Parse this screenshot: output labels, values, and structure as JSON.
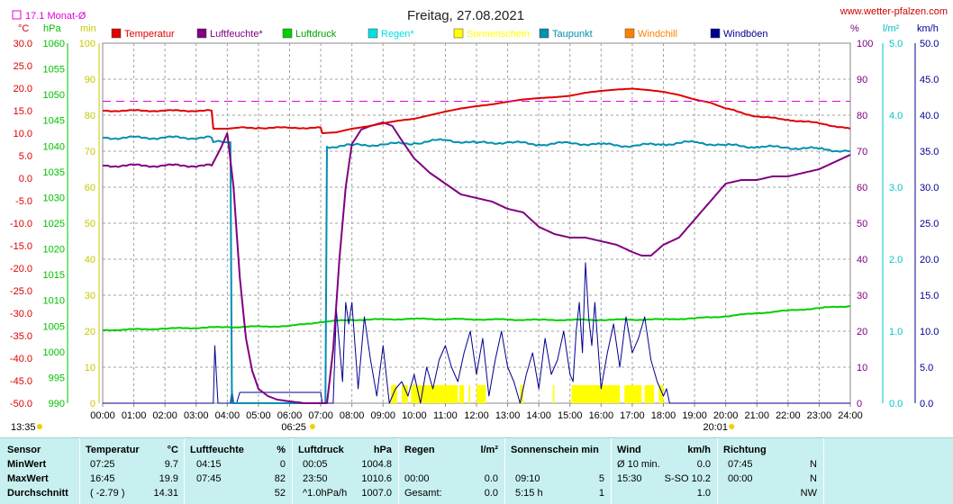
{
  "title": "Freitag, 27.08.2021",
  "site": "www.wetter-pfalzen.com",
  "monthly_avg": "17.1 Monat-Ø",
  "colors": {
    "temperatur": "#e00000",
    "luftfeuchte": "#800080",
    "luftdruck": "#00d000",
    "regen": "#00e0e0",
    "sonnenschein": "#ffff00",
    "taupunkt": "#0090b0",
    "windchill": "#ff8000",
    "windboeen": "#000090",
    "avgline": "#e000e0"
  },
  "legend": [
    "Temperatur",
    "Luftfeuchte*",
    "Luftdruck",
    "Regen*",
    "Sonnenschein",
    "Taupunkt",
    "Windchill",
    "Windböen"
  ],
  "axis_units": {
    "temp": "°C",
    "press": "hPa",
    "min": "min",
    "hum": "%",
    "rain": "l/m²",
    "wind": "km/h"
  },
  "sunrise": "06:25",
  "sunset": "20:01",
  "day_start": "13:35",
  "chart_data": {
    "type": "line",
    "x_ticks": [
      "00:00",
      "01:00",
      "02:00",
      "03:00",
      "04:00",
      "05:00",
      "06:00",
      "07:00",
      "08:00",
      "09:00",
      "10:00",
      "11:00",
      "12:00",
      "13:00",
      "14:00",
      "15:00",
      "16:00",
      "17:00",
      "18:00",
      "19:00",
      "20:00",
      "21:00",
      "22:00",
      "23:00",
      "24:00"
    ],
    "axes": {
      "temp_c": {
        "range": [
          -50,
          30
        ],
        "ticks": [
          "30.0",
          "25.0",
          "20.0",
          "15.0",
          "10.0",
          "5.0",
          "0.0",
          "-5.0",
          "-10.0",
          "-15.0",
          "-20.0",
          "-25.0",
          "-30.0",
          "-35.0",
          "-40.0",
          "-45.0",
          "-50.0"
        ]
      },
      "pressure_hpa": {
        "range": [
          990,
          1060
        ],
        "ticks": [
          "1060",
          "1055",
          "1050",
          "1045",
          "1040",
          "1035",
          "1030",
          "1025",
          "1020",
          "1015",
          "1010",
          "1005",
          "1000",
          "995",
          "990"
        ]
      },
      "sunshine_min": {
        "range": [
          0,
          100
        ],
        "ticks": [
          "100",
          "90",
          "80",
          "70",
          "60",
          "50",
          "40",
          "30",
          "20",
          "10",
          "0"
        ]
      },
      "humidity_pct": {
        "range": [
          0,
          100
        ],
        "ticks": [
          "100",
          "90",
          "80",
          "70",
          "60",
          "50",
          "40",
          "30",
          "20",
          "10",
          "0"
        ]
      },
      "rain_lm2": {
        "range": [
          0,
          5
        ],
        "ticks": [
          "5.0",
          "4.0",
          "3.0",
          "2.0",
          "1.0",
          "0.0"
        ]
      },
      "wind_kmh": {
        "range": [
          0,
          50
        ],
        "ticks": [
          "50.0",
          "45.0",
          "40.0",
          "35.0",
          "30.0",
          "25.0",
          "20.0",
          "15.0",
          "10.0",
          "5.0",
          "0.0"
        ]
      }
    },
    "monthly_avg_temp": 17.1,
    "series": [
      {
        "name": "Temperatur",
        "axis": "temp_c",
        "x": [
          0,
          3.5,
          3.55,
          4.0,
          4.3,
          5.0,
          6.0,
          7.0,
          7.05,
          7.5,
          8.0,
          8.5,
          9.0,
          9.5,
          10.0,
          10.5,
          11.0,
          11.5,
          12.0,
          12.5,
          13.0,
          13.5,
          14.0,
          14.5,
          15.0,
          15.5,
          16.0,
          16.5,
          17.0,
          17.5,
          18.0,
          18.5,
          19.0,
          19.5,
          20.0,
          21.0,
          22.0,
          23.0,
          24.0
        ],
        "values": [
          15.0,
          15.0,
          11.0,
          11.0,
          11.2,
          11.2,
          11.2,
          11.2,
          10.0,
          10.2,
          11.0,
          11.5,
          12.2,
          12.8,
          13.2,
          14.0,
          14.8,
          15.5,
          16.0,
          16.4,
          17.0,
          17.5,
          17.8,
          18.0,
          18.3,
          19.0,
          19.4,
          19.7,
          19.9,
          19.6,
          19.2,
          18.5,
          17.5,
          16.8,
          15.5,
          13.7,
          13.0,
          12.2,
          11.0
        ]
      },
      {
        "name": "Luftfeuchte*",
        "axis": "humidity_pct",
        "x": [
          0,
          3.5,
          3.8,
          4.0,
          4.2,
          4.4,
          4.6,
          4.8,
          5.0,
          5.3,
          5.6,
          6.0,
          6.5,
          7.0,
          7.2,
          7.4,
          7.6,
          7.8,
          8.0,
          8.3,
          8.6,
          9.0,
          9.3,
          9.6,
          10.0,
          10.5,
          11.0,
          11.5,
          12.0,
          12.5,
          13.0,
          13.5,
          14.0,
          14.5,
          15.0,
          15.5,
          16.0,
          16.5,
          17.0,
          17.3,
          17.6,
          18.0,
          18.5,
          19.0,
          19.5,
          20.0,
          20.5,
          21.0,
          21.5,
          22.0,
          22.5,
          23.0,
          23.5,
          24.0
        ],
        "values": [
          66,
          66,
          71,
          75,
          60,
          35,
          18,
          9,
          4,
          2,
          1,
          0.5,
          0,
          0,
          0,
          15,
          40,
          60,
          72,
          76,
          77,
          78,
          77,
          73,
          68,
          64,
          61,
          58,
          57,
          56,
          54,
          53,
          49,
          47,
          46,
          46,
          45,
          44,
          42,
          41,
          41,
          44,
          46,
          51,
          56,
          61,
          62,
          62,
          63,
          63,
          64,
          65,
          67,
          69
        ]
      },
      {
        "name": "Luftdruck",
        "axis": "pressure_hpa",
        "x": [
          0,
          2,
          4,
          6,
          7,
          8,
          10,
          12,
          14,
          16,
          18,
          19,
          20,
          21,
          22,
          23,
          24
        ],
        "values": [
          1004.2,
          1004.5,
          1004.8,
          1005.0,
          1005.8,
          1006.2,
          1006.4,
          1006.3,
          1006.2,
          1006.2,
          1006.3,
          1006.5,
          1006.9,
          1007.5,
          1008.0,
          1008.5,
          1008.9
        ]
      },
      {
        "name": "Taupunkt",
        "axis": "temp_c",
        "x": [
          0,
          3.5,
          3.55,
          4.1,
          4.15,
          4.5,
          7.15,
          7.2,
          8.0,
          9.0,
          10.0,
          11.0,
          12.0,
          13.0,
          14.0,
          15.0,
          16.0,
          17.0,
          18.0,
          19.0,
          20.0,
          21.0,
          22.0,
          23.0,
          24.0
        ],
        "values": [
          9.0,
          9.0,
          8.0,
          8.0,
          -50,
          -50,
          -50,
          7.0,
          7.3,
          7.5,
          7.8,
          8.5,
          7.8,
          8.0,
          7.5,
          7.8,
          7.5,
          7.2,
          7.6,
          8.0,
          7.3,
          7.0,
          6.8,
          6.5,
          6.0
        ]
      },
      {
        "name": "Windböen",
        "axis": "wind_kmh",
        "x": [
          0,
          3.5,
          3.55,
          3.6,
          3.65,
          3.7,
          4.1,
          4.15,
          4.2,
          4.3,
          4.4,
          6.9,
          7.0,
          7.05,
          7.4,
          7.5,
          7.7,
          7.8,
          7.9,
          8.0,
          8.2,
          8.4,
          8.6,
          8.8,
          9.0,
          9.2,
          9.4,
          9.6,
          9.8,
          10.0,
          10.2,
          10.4,
          10.6,
          10.8,
          11.0,
          11.2,
          11.4,
          11.6,
          11.8,
          12.0,
          12.2,
          12.4,
          12.6,
          12.8,
          13.0,
          13.2,
          13.4,
          13.6,
          13.8,
          14.0,
          14.2,
          14.4,
          14.6,
          14.8,
          15.0,
          15.1,
          15.2,
          15.3,
          15.4,
          15.5,
          15.6,
          15.7,
          15.8,
          16.0,
          16.2,
          16.4,
          16.6,
          16.8,
          17.0,
          17.2,
          17.4,
          17.6,
          17.8,
          18.0,
          18.1,
          18.2,
          24.0
        ],
        "values": [
          0,
          0,
          0,
          8,
          4,
          0,
          0,
          2,
          0,
          0,
          1.5,
          1.5,
          1.5,
          0,
          0,
          13,
          3,
          14,
          11,
          14,
          2,
          12,
          6,
          1,
          8,
          0,
          2,
          3,
          1,
          4,
          0,
          5,
          2,
          6,
          8,
          5,
          3,
          7,
          10,
          4,
          9,
          1,
          6,
          10,
          5,
          3,
          0,
          4,
          7,
          2,
          9,
          4,
          6,
          10,
          4,
          3,
          10,
          14,
          7,
          19.5,
          12,
          8,
          14,
          2,
          7,
          11,
          5,
          12,
          7,
          9,
          12,
          6,
          3,
          1,
          2,
          0,
          0
        ]
      },
      {
        "name": "Sonnenschein",
        "axis": "sunshine_min",
        "segments": [
          [
            9.25,
            9.45
          ],
          [
            9.6,
            9.8
          ],
          [
            9.9,
            11.4
          ],
          [
            11.45,
            11.6
          ],
          [
            11.75,
            11.8
          ],
          [
            12.0,
            12.3
          ],
          [
            13.4,
            13.5
          ],
          [
            14.45,
            14.5
          ],
          [
            15.05,
            16.6
          ],
          [
            16.75,
            17.3
          ],
          [
            17.4,
            17.7
          ],
          [
            17.85,
            18.0
          ]
        ],
        "value": 5
      }
    ]
  },
  "stats": {
    "headers": {
      "sensor": "Sensor",
      "temp": "Temperatur",
      "temp_unit": "°C",
      "hum": "Luftfeuchte",
      "hum_unit": "%",
      "press": "Luftdruck",
      "press_unit": "hPa",
      "rain": "Regen",
      "rain_unit": "l/m²",
      "sun": "Sonnenschein min",
      "wind": "Wind",
      "wind_unit": "km/h",
      "dir": "Richtung"
    },
    "rows": [
      {
        "label": "MinWert",
        "temp_t": "07:25",
        "temp_v": "9.7",
        "hum_t": "04:15",
        "hum_v": "0",
        "press_t": "00:05",
        "press_v": "1004.8",
        "rain_t": "",
        "rain_v": "",
        "sun_t": "",
        "sun_v": "",
        "wind_t": "Ø 10 min.",
        "wind_v": "0.0",
        "dir_t": "07:45",
        "dir_v": "N"
      },
      {
        "label": "MaxWert",
        "temp_t": "16:45",
        "temp_v": "19.9",
        "hum_t": "07:45",
        "hum_v": "82",
        "press_t": "23:50",
        "press_v": "1010.6",
        "rain_t": "00:00",
        "rain_v": "0.0",
        "sun_t": "09:10",
        "sun_v": "5",
        "wind_t": "15:30",
        "wind_v": "S-SO 10.2",
        "dir_t": "00:00",
        "dir_v": "N"
      },
      {
        "label": "Durchschnitt",
        "temp_t": "( -2.79 )",
        "temp_v": "14.31",
        "hum_t": "",
        "hum_v": "52",
        "press_t": "^1.0hPa/h",
        "press_v": "1007.0",
        "rain_t": "Gesamt:",
        "rain_v": "0.0",
        "sun_t": "5:15 h",
        "sun_v": "1",
        "wind_t": "",
        "wind_v": "1.0",
        "dir_t": "",
        "dir_v": "NW"
      }
    ]
  }
}
